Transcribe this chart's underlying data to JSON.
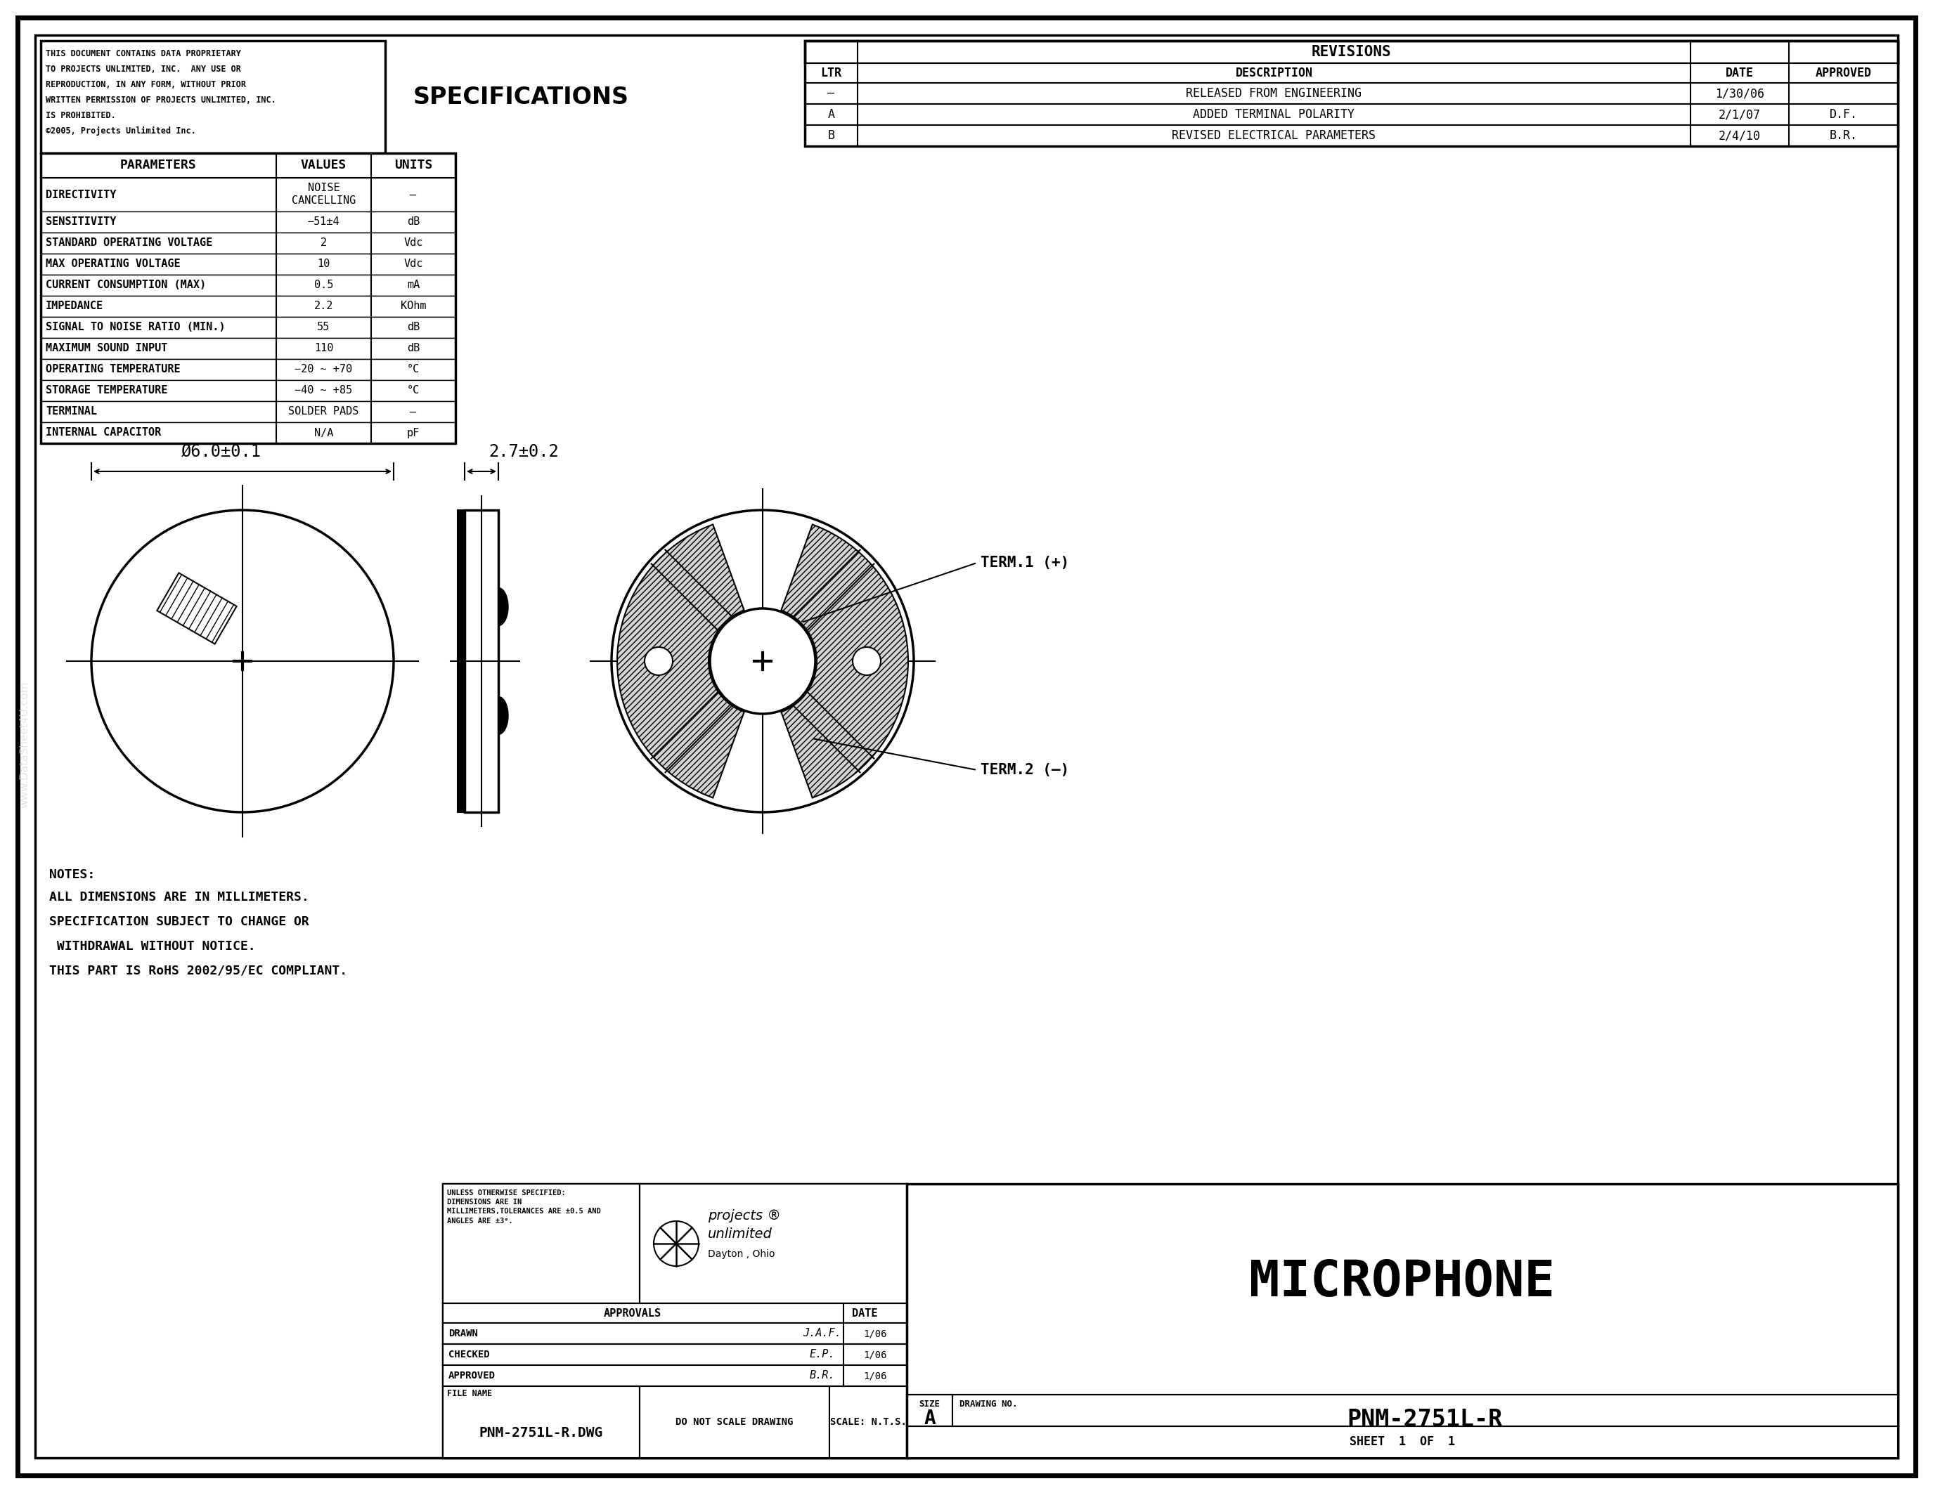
{
  "bg_color": "#ffffff",
  "proprietary_text_lines": [
    "THIS DOCUMENT CONTAINS DATA PROPRIETARY",
    "TO PROJECTS UNLIMITED, INC.  ANY USE OR",
    "REPRODUCTION, IN ANY FORM, WITHOUT PRIOR",
    "WRITTEN PERMISSION OF PROJECTS UNLIMITED, INC.",
    "IS PROHIBITED.",
    "©2005, Projects Unlimited Inc."
  ],
  "spec_title": "SPECIFICATIONS",
  "spec_headers": [
    "PARAMETERS",
    "VALUES",
    "UNITS"
  ],
  "spec_rows": [
    [
      "DIRECTIVITY",
      "NOISE\nCANCELLING",
      "–"
    ],
    [
      "SENSITIVITY",
      "−51±4",
      "dB"
    ],
    [
      "STANDARD OPERATING VOLTAGE",
      "2",
      "Vdc"
    ],
    [
      "MAX OPERATING VOLTAGE",
      "10",
      "Vdc"
    ],
    [
      "CURRENT CONSUMPTION (MAX)",
      "0.5",
      "mA"
    ],
    [
      "IMPEDANCE",
      "2.2",
      "KOhm"
    ],
    [
      "SIGNAL TO NOISE RATIO (MIN.)",
      "55",
      "dB"
    ],
    [
      "MAXIMUM SOUND INPUT",
      "110",
      "dB"
    ],
    [
      "OPERATING TEMPERATURE",
      "−20 ∼ +70",
      "°C"
    ],
    [
      "STORAGE TEMPERATURE",
      "−40 ∼ +85",
      "°C"
    ],
    [
      "TERMINAL",
      "SOLDER PADS",
      "–"
    ],
    [
      "INTERNAL CAPACITOR",
      "N/A",
      "pF"
    ]
  ],
  "rev_title": "REVISIONS",
  "rev_headers": [
    "LTR",
    "DESCRIPTION",
    "DATE",
    "APPROVED"
  ],
  "rev_rows": [
    [
      "–",
      "RELEASED FROM ENGINEERING",
      "1/30/06",
      ""
    ],
    [
      "A",
      "ADDED TERMINAL POLARITY",
      "2/1/07",
      "D.F."
    ],
    [
      "B",
      "REVISED ELECTRICAL PARAMETERS",
      "2/4/10",
      "B.R."
    ]
  ],
  "dim_label1": "Ø6.0±0.1",
  "dim_label2": "2.7±0.2",
  "term1_label": "TERM.1 (+)",
  "term2_label": "TERM.2 (–)",
  "notes_title": "NOTES:",
  "notes": [
    "ALL DIMENSIONS ARE IN MILLIMETERS.",
    "SPECIFICATION SUBJECT TO CHANGE OR",
    " WITHDRAWAL WITHOUT NOTICE.",
    "THIS PART IS RoHS 2002/95/EC COMPLIANT."
  ],
  "tb_unless": "UNLESS OTHERWISE SPECIFIED:\nDIMENSIONS ARE IN\nMILLIMETERS,TOLERANCES ARE ±0.5 AND\nANGLES ARE ±3°.",
  "tb_company1": "projects ®",
  "tb_company2": "unlimited",
  "tb_location": "Dayton , Ohio",
  "tb_part_name": "MICROPHONE",
  "tb_drawn_by": "J.A.F.",
  "tb_checked_by": "E.P.",
  "tb_approved_by": "B.R.",
  "tb_drawn_date": "1/06",
  "tb_checked_date": "1/06",
  "tb_approved_date": "1/06",
  "tb_size": "A",
  "tb_drawing_no": "PNM-2751L-R",
  "tb_sheet": "1",
  "tb_of": "1",
  "tb_file_name": "PNM-2751L-R.DWG",
  "tb_do_not_scale": "DO NOT SCALE DRAWING",
  "tb_scale": "SCALE: N.T.S."
}
